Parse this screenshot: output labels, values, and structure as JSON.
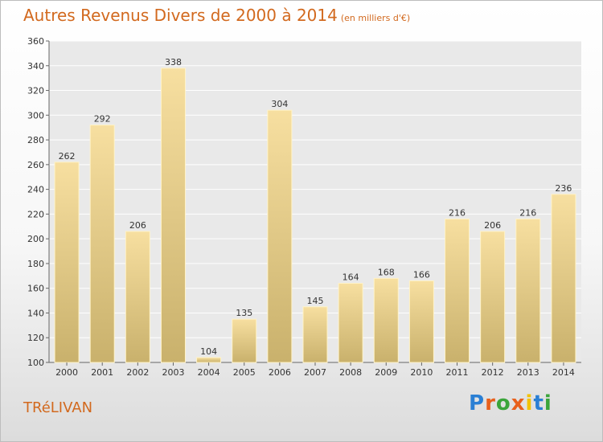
{
  "title": "Autres Revenus Divers de 2000 à 2014",
  "subtitle": "(en milliers d'€)",
  "place_name": "TRéLIVAN",
  "logo": {
    "letters": [
      "P",
      "r",
      "o",
      "x",
      "i",
      "t",
      "i"
    ],
    "colors": [
      "#2a7fd4",
      "#e8601c",
      "#3aa53a",
      "#e8601c",
      "#f2c200",
      "#2a7fd4",
      "#3aa53a"
    ]
  },
  "chart_data": {
    "type": "bar",
    "title": "Autres Revenus Divers de 2000 à 2014",
    "subtitle": "(en milliers d'€)",
    "xlabel": "",
    "ylabel": "",
    "categories": [
      "2000",
      "2001",
      "2002",
      "2003",
      "2004",
      "2005",
      "2006",
      "2007",
      "2008",
      "2009",
      "2010",
      "2011",
      "2012",
      "2013",
      "2014"
    ],
    "values": [
      262,
      292,
      206,
      338,
      104,
      135,
      304,
      145,
      164,
      168,
      166,
      216,
      206,
      216,
      236
    ],
    "ylim": [
      100,
      360
    ],
    "yticks": [
      100,
      120,
      140,
      160,
      180,
      200,
      220,
      240,
      260,
      280,
      300,
      320,
      340,
      360
    ],
    "grid": true,
    "bar_color_top": "#f7dfa0",
    "bar_color_bottom": "#c9b16c"
  }
}
